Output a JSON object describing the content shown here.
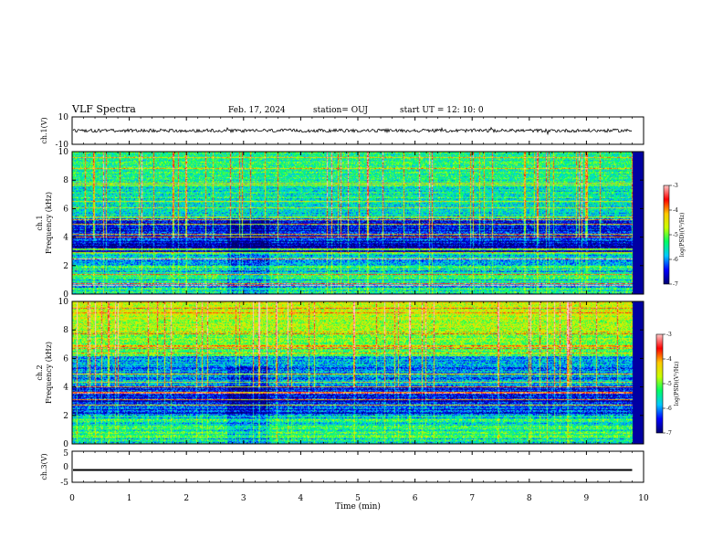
{
  "header": {
    "title": "VLF Spectra",
    "date": "Feb. 17, 2024",
    "station": "station= OUJ",
    "start": "start  UT =   12: 10: 0"
  },
  "colors": {
    "background": "#ffffff",
    "axes": "#000000",
    "colormap": [
      "#000070",
      "#0000ff",
      "#00c8ff",
      "#00ff64",
      "#c8ff00",
      "#ffc800",
      "#ff0000",
      "#ffc8c8"
    ]
  },
  "chart_data": [
    {
      "type": "line",
      "name": "waveform-ch1",
      "ylabel": "ch.1(V)",
      "ylim": [
        -10,
        10
      ],
      "yticks": [
        "10",
        "-10"
      ],
      "xlim": [
        0,
        10
      ],
      "baseline": 0,
      "noise_amplitude": 1.2
    },
    {
      "type": "heatmap",
      "name": "spectrogram-ch1",
      "ylabel_top": "ch.1",
      "ylabel": "Frequency (kHz)",
      "ylim": [
        0,
        10
      ],
      "yticks": [
        "0",
        "2",
        "4",
        "6",
        "8",
        "10"
      ],
      "xlim": [
        0,
        10
      ],
      "colorbar": {
        "label": "log(PSD)(V²/Hz)",
        "range": [
          -7,
          -3
        ],
        "ticks": [
          "-3",
          "-4",
          "-5",
          "-6",
          "-7"
        ]
      }
    },
    {
      "type": "heatmap",
      "name": "spectrogram-ch2",
      "ylabel_top": "ch.2",
      "ylabel": "Frequency (kHz)",
      "ylim": [
        0,
        10
      ],
      "yticks": [
        "0",
        "2",
        "4",
        "6",
        "8",
        "10"
      ],
      "xlim": [
        0,
        10
      ],
      "colorbar": {
        "label": "log(PSD)(V²/Hz)",
        "range": [
          -7,
          -3
        ],
        "ticks": [
          "-3",
          "-4",
          "-5",
          "-6",
          "-7"
        ]
      }
    },
    {
      "type": "line",
      "name": "waveform-ch3",
      "ylabel": "ch.3(V)",
      "ylim": [
        -5,
        5
      ],
      "yticks": [
        "5",
        "0",
        "-5"
      ],
      "xlim": [
        0,
        10
      ],
      "baseline": -1,
      "noise_amplitude": 0.25
    }
  ],
  "xaxis": {
    "label": "Time (min)",
    "ticks": [
      "0",
      "1",
      "2",
      "3",
      "4",
      "5",
      "6",
      "7",
      "8",
      "9",
      "10"
    ],
    "data_end": 9.8
  }
}
